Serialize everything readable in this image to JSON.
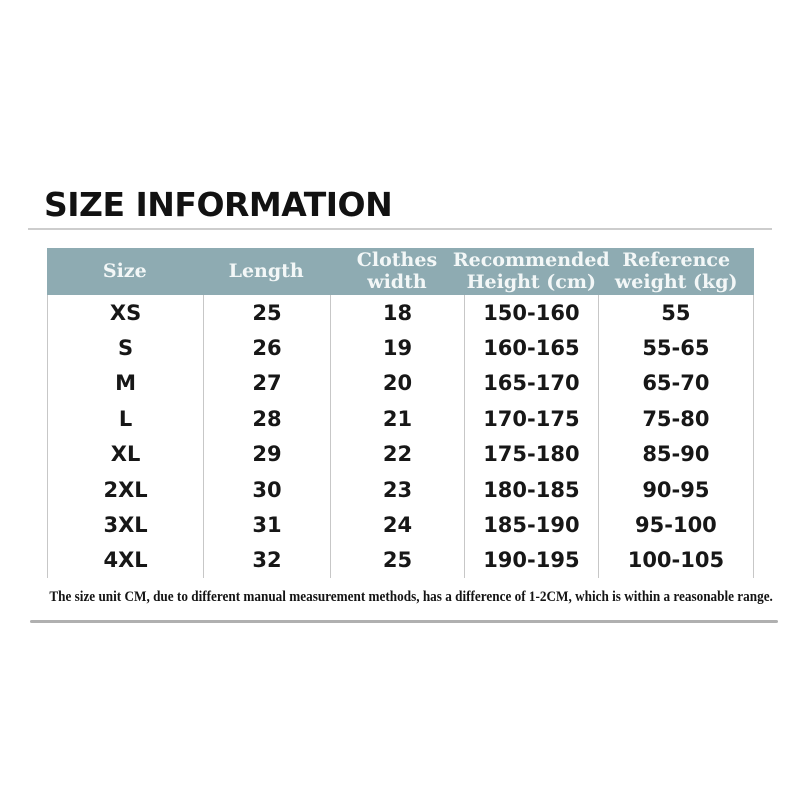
{
  "header": {
    "title": "SIZE INFORMATION"
  },
  "footnote": "The size unit CM, due to different manual measurement methods, has a difference of 1-2CM, which is within a reasonable range.",
  "colors": {
    "table_header_bg": "#8eabb2",
    "table_header_text": "#f3f7f7",
    "body_text": "#171717",
    "divider": "#c7c7c7",
    "rule_top": "#cdcdcd",
    "rule_bottom": "#b0b0b0"
  },
  "chart_data": {
    "type": "table",
    "title": "SIZE INFORMATION",
    "columns": [
      "Size",
      "Length",
      "Clothes width",
      "Recommended Height (cm)",
      "Reference weight (kg)"
    ],
    "rows": [
      [
        "XS",
        "25",
        "18",
        "150-160",
        "55"
      ],
      [
        "S",
        "26",
        "19",
        "160-165",
        "55-65"
      ],
      [
        "M",
        "27",
        "20",
        "165-170",
        "65-70"
      ],
      [
        "L",
        "28",
        "21",
        "170-175",
        "75-80"
      ],
      [
        "XL",
        "29",
        "22",
        "175-180",
        "85-90"
      ],
      [
        "2XL",
        "30",
        "23",
        "180-185",
        "90-95"
      ],
      [
        "3XL",
        "31",
        "24",
        "185-190",
        "95-100"
      ],
      [
        "4XL",
        "32",
        "25",
        "190-195",
        "100-105"
      ]
    ]
  }
}
